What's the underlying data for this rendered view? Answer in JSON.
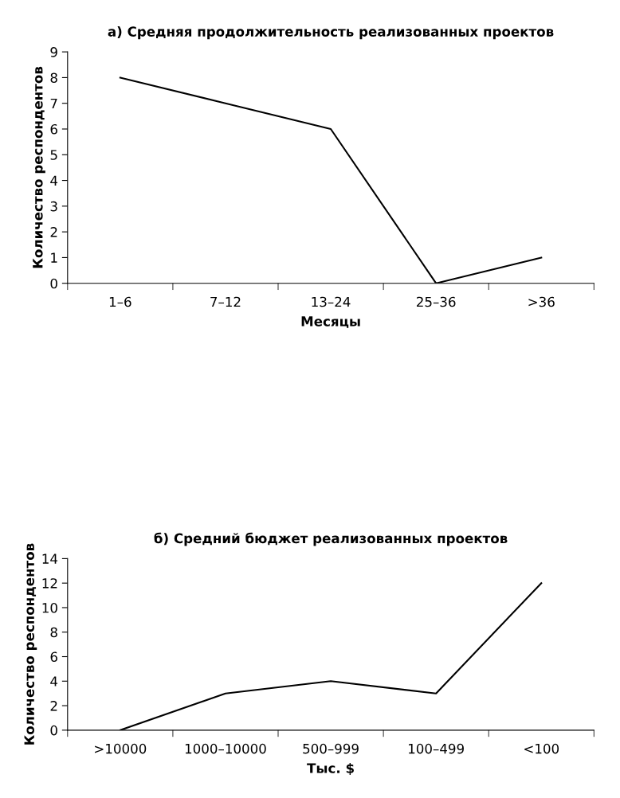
{
  "chart_data": [
    {
      "type": "line",
      "title": "а) Средняя продолжительность реализованных проектов",
      "xlabel": "Месяцы",
      "ylabel": "Количество респондентов",
      "categories": [
        "1–6",
        "7–12",
        "13–24",
        "25–36",
        ">36"
      ],
      "values": [
        8,
        7,
        6,
        0,
        1
      ],
      "color": "#000000",
      "ylim": [
        0,
        9
      ],
      "yticks": [
        0,
        1,
        2,
        3,
        4,
        5,
        6,
        7,
        8,
        9
      ],
      "marker": "none",
      "line_style": "solid"
    },
    {
      "type": "line",
      "title": "б) Средний бюджет реализованных проектов",
      "xlabel": "Тыс. $",
      "ylabel": "Количество респондентов",
      "categories": [
        ">10000",
        "1000–10000",
        "500–999",
        "100–499",
        "<100"
      ],
      "values": [
        0,
        3,
        4,
        3,
        12
      ],
      "color": "#000000",
      "ylim": [
        0,
        14
      ],
      "yticks": [
        0,
        2,
        4,
        6,
        8,
        10,
        12,
        14
      ],
      "marker": "none",
      "line_style": "solid"
    }
  ]
}
